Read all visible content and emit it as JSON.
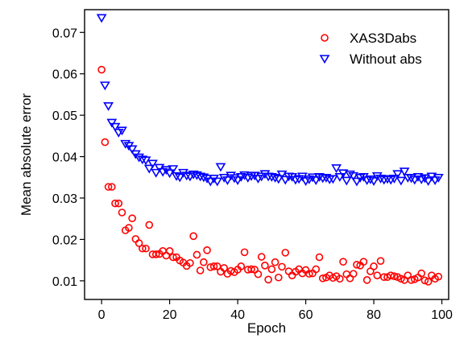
{
  "chart_data": {
    "type": "scatter",
    "xlabel": "Epoch",
    "ylabel": "Mean absolute error",
    "xlim": [
      -5,
      102
    ],
    "ylim": [
      0.0055,
      0.0755
    ],
    "xticks": [
      0,
      20,
      40,
      60,
      80,
      100
    ],
    "yticks": [
      0.01,
      0.02,
      0.03,
      0.04,
      0.05,
      0.06,
      0.07
    ],
    "xtick_labels": [
      "0",
      "20",
      "40",
      "60",
      "80",
      "100"
    ],
    "ytick_labels": [
      "0.01",
      "0.02",
      "0.03",
      "0.04",
      "0.05",
      "0.06",
      "0.07"
    ],
    "grid": false,
    "legend_position": "top-right",
    "series": [
      {
        "name": "XAS3Dabs",
        "marker": "circle",
        "color": "#ff0000",
        "x": [
          0,
          1,
          2,
          3,
          4,
          5,
          6,
          7,
          8,
          9,
          10,
          11,
          12,
          13,
          14,
          15,
          16,
          17,
          18,
          19,
          20,
          21,
          22,
          23,
          24,
          25,
          26,
          27,
          28,
          29,
          30,
          31,
          32,
          33,
          34,
          35,
          36,
          37,
          38,
          39,
          40,
          41,
          42,
          43,
          44,
          45,
          46,
          47,
          48,
          49,
          50,
          51,
          52,
          53,
          54,
          55,
          56,
          57,
          58,
          59,
          60,
          61,
          62,
          63,
          64,
          65,
          66,
          67,
          68,
          69,
          70,
          71,
          72,
          73,
          74,
          75,
          76,
          77,
          78,
          79,
          80,
          81,
          82,
          83,
          84,
          85,
          86,
          87,
          88,
          89,
          90,
          91,
          92,
          93,
          94,
          95,
          96,
          97,
          98,
          99
        ],
        "y": [
          0.061,
          0.0435,
          0.0327,
          0.0327,
          0.0287,
          0.0287,
          0.0265,
          0.0222,
          0.0228,
          0.0251,
          0.0201,
          0.0191,
          0.0178,
          0.0178,
          0.0235,
          0.0164,
          0.0164,
          0.0165,
          0.0172,
          0.0161,
          0.0172,
          0.0157,
          0.0157,
          0.0149,
          0.0144,
          0.0136,
          0.0143,
          0.0208,
          0.0163,
          0.0125,
          0.0145,
          0.0174,
          0.0133,
          0.0135,
          0.0135,
          0.0122,
          0.0131,
          0.0117,
          0.0124,
          0.0121,
          0.0127,
          0.0135,
          0.0169,
          0.0127,
          0.0128,
          0.0127,
          0.0116,
          0.0158,
          0.0137,
          0.0103,
          0.0128,
          0.0145,
          0.0108,
          0.0134,
          0.0168,
          0.0123,
          0.0113,
          0.0122,
          0.0128,
          0.0118,
          0.0126,
          0.0117,
          0.0118,
          0.0128,
          0.0157,
          0.0106,
          0.0108,
          0.0113,
          0.0107,
          0.0111,
          0.0105,
          0.0146,
          0.0116,
          0.0106,
          0.0117,
          0.0139,
          0.0137,
          0.0146,
          0.0102,
          0.0123,
          0.0135,
          0.0113,
          0.0148,
          0.0109,
          0.0109,
          0.0113,
          0.0111,
          0.0109,
          0.0105,
          0.0102,
          0.0113,
          0.0102,
          0.0104,
          0.0108,
          0.0118,
          0.0101,
          0.0098,
          0.0113,
          0.0105,
          0.011
        ]
      },
      {
        "name": "Without abs",
        "marker": "triangle-down",
        "color": "#0000ff",
        "x": [
          0,
          1,
          2,
          3,
          4,
          5,
          6,
          7,
          8,
          9,
          10,
          11,
          12,
          13,
          14,
          15,
          16,
          17,
          18,
          19,
          20,
          21,
          22,
          23,
          24,
          25,
          26,
          27,
          28,
          29,
          30,
          31,
          32,
          33,
          34,
          35,
          36,
          37,
          38,
          39,
          40,
          41,
          42,
          43,
          44,
          45,
          46,
          47,
          48,
          49,
          50,
          51,
          52,
          53,
          54,
          55,
          56,
          57,
          58,
          59,
          60,
          61,
          62,
          63,
          64,
          65,
          66,
          67,
          68,
          69,
          70,
          71,
          72,
          73,
          74,
          75,
          76,
          77,
          78,
          79,
          80,
          81,
          82,
          83,
          84,
          85,
          86,
          87,
          88,
          89,
          90,
          91,
          92,
          93,
          94,
          95,
          96,
          97,
          98,
          99
        ],
        "y": [
          0.0735,
          0.0572,
          0.0522,
          0.0482,
          0.0472,
          0.0458,
          0.0463,
          0.0431,
          0.0426,
          0.0418,
          0.0406,
          0.0398,
          0.0393,
          0.0391,
          0.0371,
          0.0383,
          0.0361,
          0.0373,
          0.0363,
          0.0368,
          0.036,
          0.037,
          0.0353,
          0.035,
          0.0361,
          0.0354,
          0.0352,
          0.0357,
          0.0355,
          0.0352,
          0.035,
          0.0347,
          0.034,
          0.0347,
          0.034,
          0.0375,
          0.0349,
          0.0343,
          0.0354,
          0.0348,
          0.0343,
          0.0351,
          0.0355,
          0.0349,
          0.0353,
          0.0354,
          0.0347,
          0.0352,
          0.0358,
          0.0352,
          0.0351,
          0.0349,
          0.0346,
          0.0357,
          0.0344,
          0.0352,
          0.0351,
          0.0344,
          0.0346,
          0.0352,
          0.0341,
          0.0345,
          0.035,
          0.0343,
          0.0351,
          0.0348,
          0.0349,
          0.0345,
          0.0346,
          0.0372,
          0.0351,
          0.036,
          0.0342,
          0.0357,
          0.0353,
          0.034,
          0.0349,
          0.0351,
          0.0343,
          0.0345,
          0.0341,
          0.0353,
          0.0347,
          0.0344,
          0.0346,
          0.0344,
          0.0347,
          0.0358,
          0.0342,
          0.0364,
          0.0349,
          0.0348,
          0.0344,
          0.0351,
          0.0345,
          0.0348,
          0.0341,
          0.0352,
          0.0343,
          0.0349
        ]
      }
    ]
  }
}
